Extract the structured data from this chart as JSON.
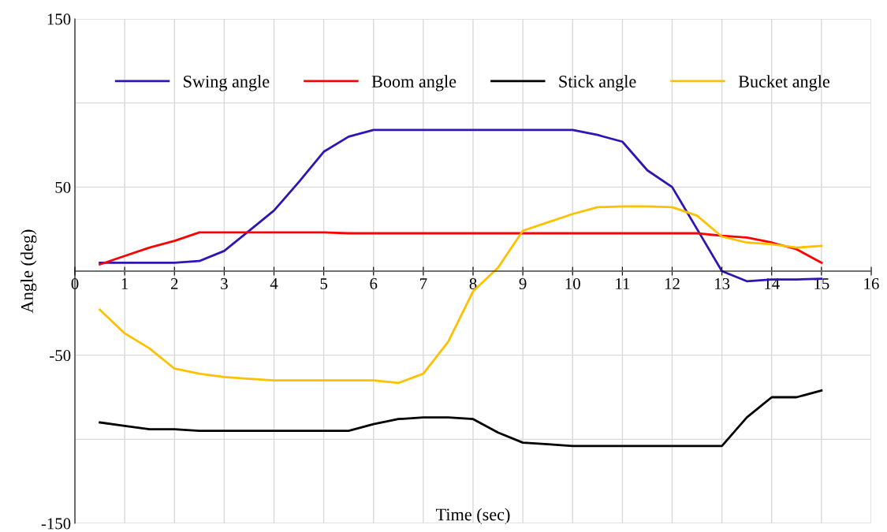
{
  "chart_data": {
    "type": "line",
    "xlabel": "Time (sec)",
    "ylabel": "Angle (deg)",
    "x": [
      0.5,
      1,
      1.5,
      2,
      2.5,
      3,
      3.5,
      4,
      4.5,
      5,
      5.5,
      6,
      6.5,
      7,
      7.5,
      8,
      8.5,
      9,
      9.5,
      10,
      10.5,
      11,
      11.5,
      12,
      12.5,
      13,
      13.5,
      14,
      14.5,
      15
    ],
    "series": [
      {
        "name": "Swing angle",
        "color": "#2e16b4",
        "values": [
          5,
          5,
          5,
          5,
          6,
          12,
          24,
          36,
          53,
          71,
          80,
          84,
          84,
          84,
          84,
          84,
          84,
          84,
          84,
          84,
          81,
          77,
          60,
          50,
          25,
          0,
          -6,
          -5,
          -5,
          -4.5
        ]
      },
      {
        "name": "Boom angle",
        "color": "#ff0000",
        "values": [
          4,
          9,
          14,
          18,
          23,
          23,
          23,
          23,
          23,
          23,
          22.5,
          22.5,
          22.5,
          22.5,
          22.5,
          22.5,
          22.5,
          22.5,
          22.5,
          22.5,
          22.5,
          22.5,
          22.5,
          22.5,
          22.5,
          21,
          20,
          17,
          13,
          5
        ]
      },
      {
        "name": "Stick angle",
        "color": "#000000",
        "values": [
          -90,
          -92,
          -94,
          -94,
          -95,
          -95,
          -95,
          -95,
          -95,
          -95,
          -95,
          -91,
          -88,
          -87,
          -87,
          -88,
          -96,
          -102,
          -103,
          -104,
          -104,
          -104,
          -104,
          -104,
          -104,
          -104,
          -87,
          -75,
          -75,
          -71
        ]
      },
      {
        "name": "Bucket angle",
        "color": "#ffc000",
        "values": [
          -23,
          -37,
          -46,
          -58,
          -61,
          -63,
          -64,
          -65,
          -65,
          -65,
          -65,
          -65,
          -66.5,
          -61,
          -42,
          -12,
          2,
          24,
          29,
          34,
          38,
          38.5,
          38.5,
          38,
          33,
          20.5,
          17,
          16,
          14,
          15
        ]
      }
    ],
    "xlim": [
      0,
      16
    ],
    "xticks": [
      0,
      1,
      2,
      3,
      4,
      5,
      6,
      7,
      8,
      9,
      10,
      11,
      12,
      13,
      14,
      15,
      16
    ],
    "ylim": [
      -150,
      150
    ],
    "yticks": [
      -150,
      {
        "value": -100,
        "label": null
      },
      -50,
      {
        "value": 0,
        "label": null
      },
      50,
      {
        "value": 100,
        "label": null
      },
      150
    ],
    "grid": true,
    "legend": "top",
    "marker": "none",
    "line_style": "solid"
  }
}
